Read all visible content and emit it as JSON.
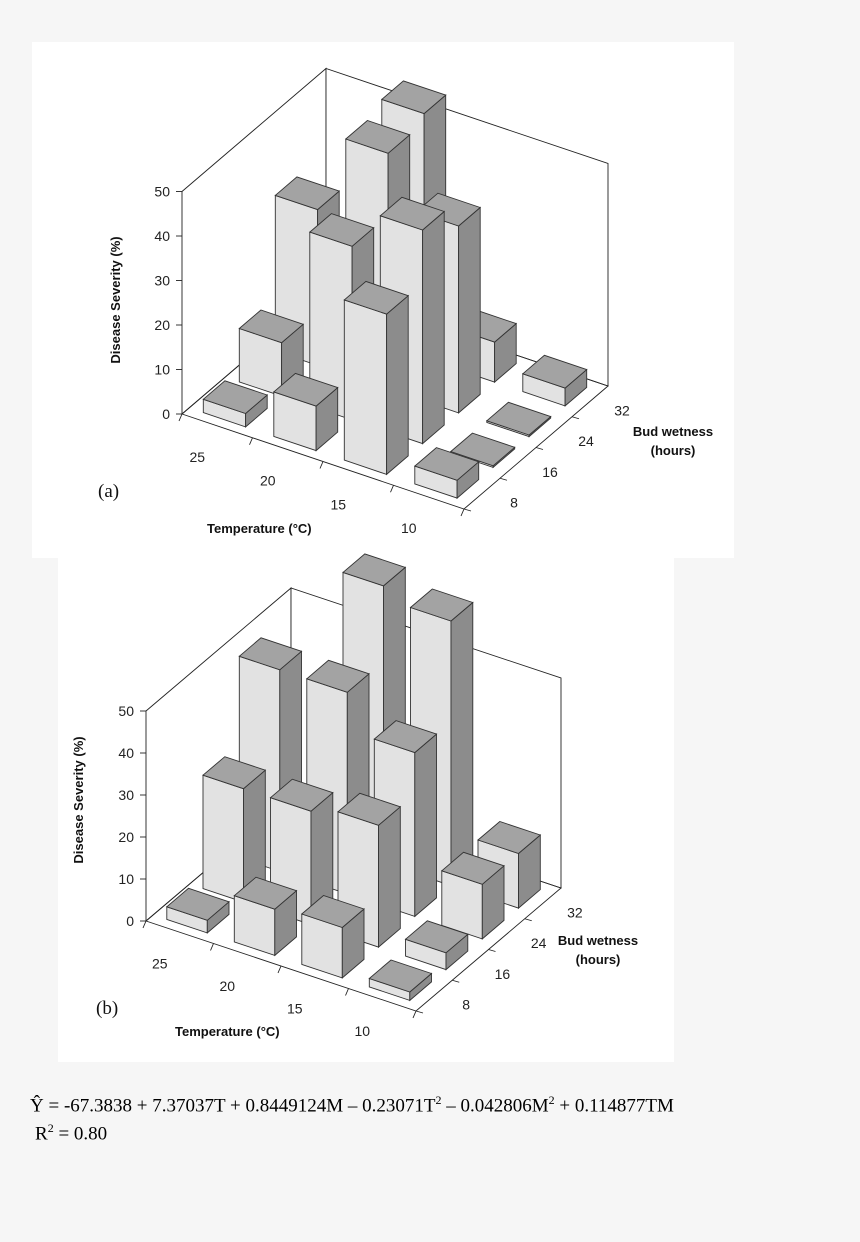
{
  "chart_data": [
    {
      "type": "bar3d",
      "panel_label": "(a)",
      "zlabel": "Disease Severity (%)",
      "xlabel": "Temperature (°C)",
      "ylabel": [
        "Bud wetness",
        "(hours)"
      ],
      "zlim": [
        0,
        50
      ],
      "z_ticks": [
        "0",
        "10",
        "20",
        "30",
        "40",
        "50"
      ],
      "temperatures": [
        "25",
        "20",
        "15",
        "10"
      ],
      "wetness": [
        "8",
        "16",
        "24",
        "32"
      ],
      "values": [
        [
          3,
          12,
          35,
          3
        ],
        [
          10,
          39,
          53,
          55
        ],
        [
          36,
          48,
          42,
          9
        ],
        [
          4,
          0,
          0,
          4
        ]
      ]
    },
    {
      "type": "bar3d",
      "panel_label": "(b)",
      "zlabel": "Disease Severity (%)",
      "xlabel": "Temperature (°C)",
      "ylabel": [
        "Bud wetness",
        "(hours)"
      ],
      "zlim": [
        0,
        50
      ],
      "z_ticks": [
        "0",
        "10",
        "20",
        "30",
        "40",
        "50"
      ],
      "temperatures": [
        "25",
        "20",
        "15",
        "10"
      ],
      "wetness": [
        "8",
        "16",
        "24",
        "32"
      ],
      "values": [
        [
          3,
          27,
          48,
          3
        ],
        [
          11,
          27,
          48,
          66
        ],
        [
          12,
          29,
          39,
          63
        ],
        [
          2,
          4,
          13,
          13
        ]
      ]
    }
  ],
  "equation": {
    "yhat": "Ŷ",
    "p1": " = -67.3838 + 7.37037T + 0.8449124M – 0.23071T",
    "sup1": "2",
    "p2": " – 0.042806M",
    "sup2": "2",
    "p3": " + 0.114877TM"
  },
  "r2": {
    "label": "R",
    "sup": "2",
    "value": " = 0.80"
  }
}
